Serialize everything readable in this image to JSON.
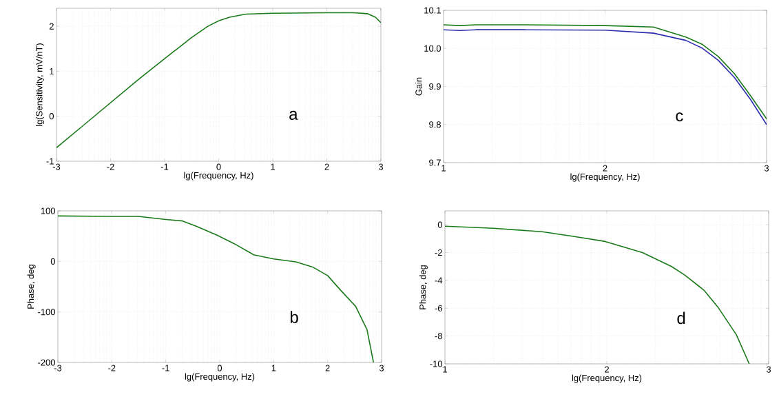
{
  "chart_data": [
    {
      "type": "line",
      "xlabel": "lg(Frequency, Hz)",
      "ylabel": "lg(Sensitivity, mV/nT)",
      "annotations": [
        "a"
      ],
      "xlim": [
        -3,
        3
      ],
      "ylim": [
        -1,
        2.4
      ],
      "xticks": [
        -3,
        -2,
        -1,
        0,
        1,
        2,
        3
      ],
      "yticks": [
        -1,
        0,
        1,
        2
      ],
      "grid": true,
      "series": [
        {
          "color": "#1a7a1a",
          "x": [
            -3,
            -2.5,
            -2,
            -1.5,
            -1,
            -0.5,
            -0.2,
            0,
            0.2,
            0.5,
            1,
            2,
            2.5,
            2.75,
            2.9,
            3
          ],
          "values": [
            -0.7,
            -0.2,
            0.3,
            0.8,
            1.28,
            1.75,
            2.0,
            2.12,
            2.2,
            2.27,
            2.29,
            2.3,
            2.3,
            2.28,
            2.2,
            2.08
          ]
        }
      ]
    },
    {
      "type": "line",
      "xlabel": "lg(Frequency, Hz)",
      "ylabel": "Gain",
      "annotations": [
        "c"
      ],
      "xlim": [
        1,
        3
      ],
      "ylim": [
        9.7,
        10.1
      ],
      "xticks": [
        1,
        2,
        3
      ],
      "yticks": [
        9.7,
        9.8,
        9.9,
        {
          "value": 10,
          "label": "10.0"
        },
        10.1
      ],
      "grid": true,
      "series": [
        {
          "color": "#1a7a1a",
          "x": [
            1,
            1.1,
            1.2,
            1.5,
            2,
            2.3,
            2.5,
            2.6,
            2.7,
            2.8,
            2.9,
            3
          ],
          "values": [
            10.062,
            10.06,
            10.062,
            10.062,
            10.06,
            10.056,
            10.03,
            10.011,
            9.979,
            9.934,
            9.876,
            9.815
          ]
        },
        {
          "color": "#2c2cb0",
          "x": [
            1,
            1.1,
            1.2,
            1.5,
            2,
            2.3,
            2.5,
            2.6,
            2.7,
            2.8,
            2.9,
            3
          ],
          "values": [
            10.049,
            10.047,
            10.049,
            10.049,
            10.048,
            10.04,
            10.021,
            10.001,
            9.969,
            9.924,
            9.866,
            9.8
          ]
        }
      ]
    },
    {
      "type": "line",
      "xlabel": "lg(Frequency, Hz)",
      "ylabel": "Phase, deg",
      "annotations": [
        "b"
      ],
      "xlim": [
        -3,
        3
      ],
      "ylim": [
        -200,
        100
      ],
      "xticks": [
        -3,
        -2,
        -1,
        0,
        1,
        2,
        3
      ],
      "yticks": [
        -200,
        -100,
        0,
        100
      ],
      "grid": true,
      "series": [
        {
          "color": "#1a7a1a",
          "x": [
            -3,
            -2,
            -1.51,
            -1,
            -0.69,
            -0.42,
            -0.05,
            0.27,
            0.63,
            1,
            1.41,
            1.72,
            2.0,
            2.24,
            2.52,
            2.73,
            2.85
          ],
          "values": [
            90,
            89,
            89,
            83,
            80,
            69,
            52,
            35,
            13,
            5,
            -1,
            -11,
            -28,
            -57,
            -89,
            -135,
            -200
          ]
        }
      ]
    },
    {
      "type": "line",
      "xlabel": "lg(Frequency, Hz)",
      "ylabel": "Phase, deg",
      "annotations": [
        "d"
      ],
      "xlim": [
        1,
        3
      ],
      "ylim": [
        -10,
        1
      ],
      "xticks": [
        1,
        2,
        3
      ],
      "yticks": [
        -10,
        -8,
        -6,
        -4,
        -2,
        0
      ],
      "grid": true,
      "series": [
        {
          "color": "#1a7a1a",
          "x": [
            1,
            1.3,
            1.6,
            1.8,
            1.99,
            2.22,
            2.4,
            2.48,
            2.6,
            2.69,
            2.8,
            2.88
          ],
          "values": [
            -0.1,
            -0.25,
            -0.5,
            -0.85,
            -1.2,
            -2.0,
            -3.0,
            -3.6,
            -4.7,
            -5.98,
            -7.9,
            -10
          ]
        }
      ]
    }
  ]
}
